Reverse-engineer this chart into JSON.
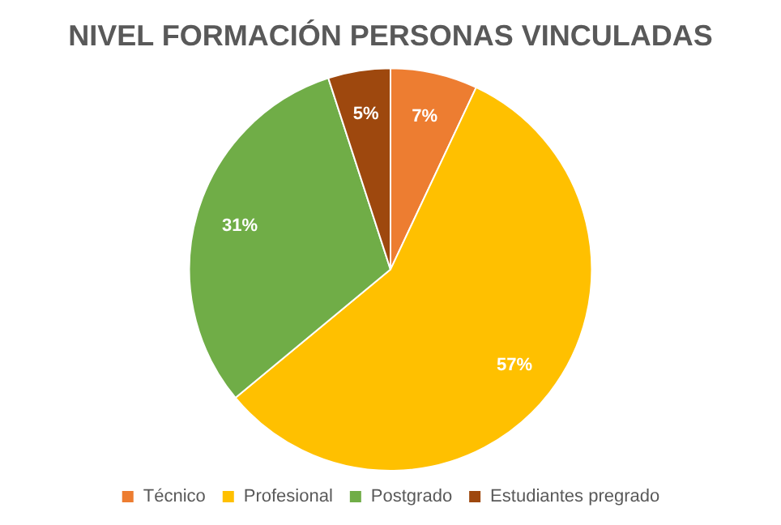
{
  "chart_data": {
    "type": "pie",
    "title": "NIVEL FORMACIÓN PERSONAS VINCULADAS",
    "categories": [
      "Técnico",
      "Profesional",
      "Postgrado",
      "Estudiantes pregrado"
    ],
    "values": [
      7,
      57,
      31,
      5
    ],
    "colors": [
      "#ed7d31",
      "#ffc000",
      "#70ad47",
      "#9e480e"
    ],
    "value_labels": [
      "7%",
      "57%",
      "31%",
      "5%"
    ],
    "legend": "bottom"
  }
}
